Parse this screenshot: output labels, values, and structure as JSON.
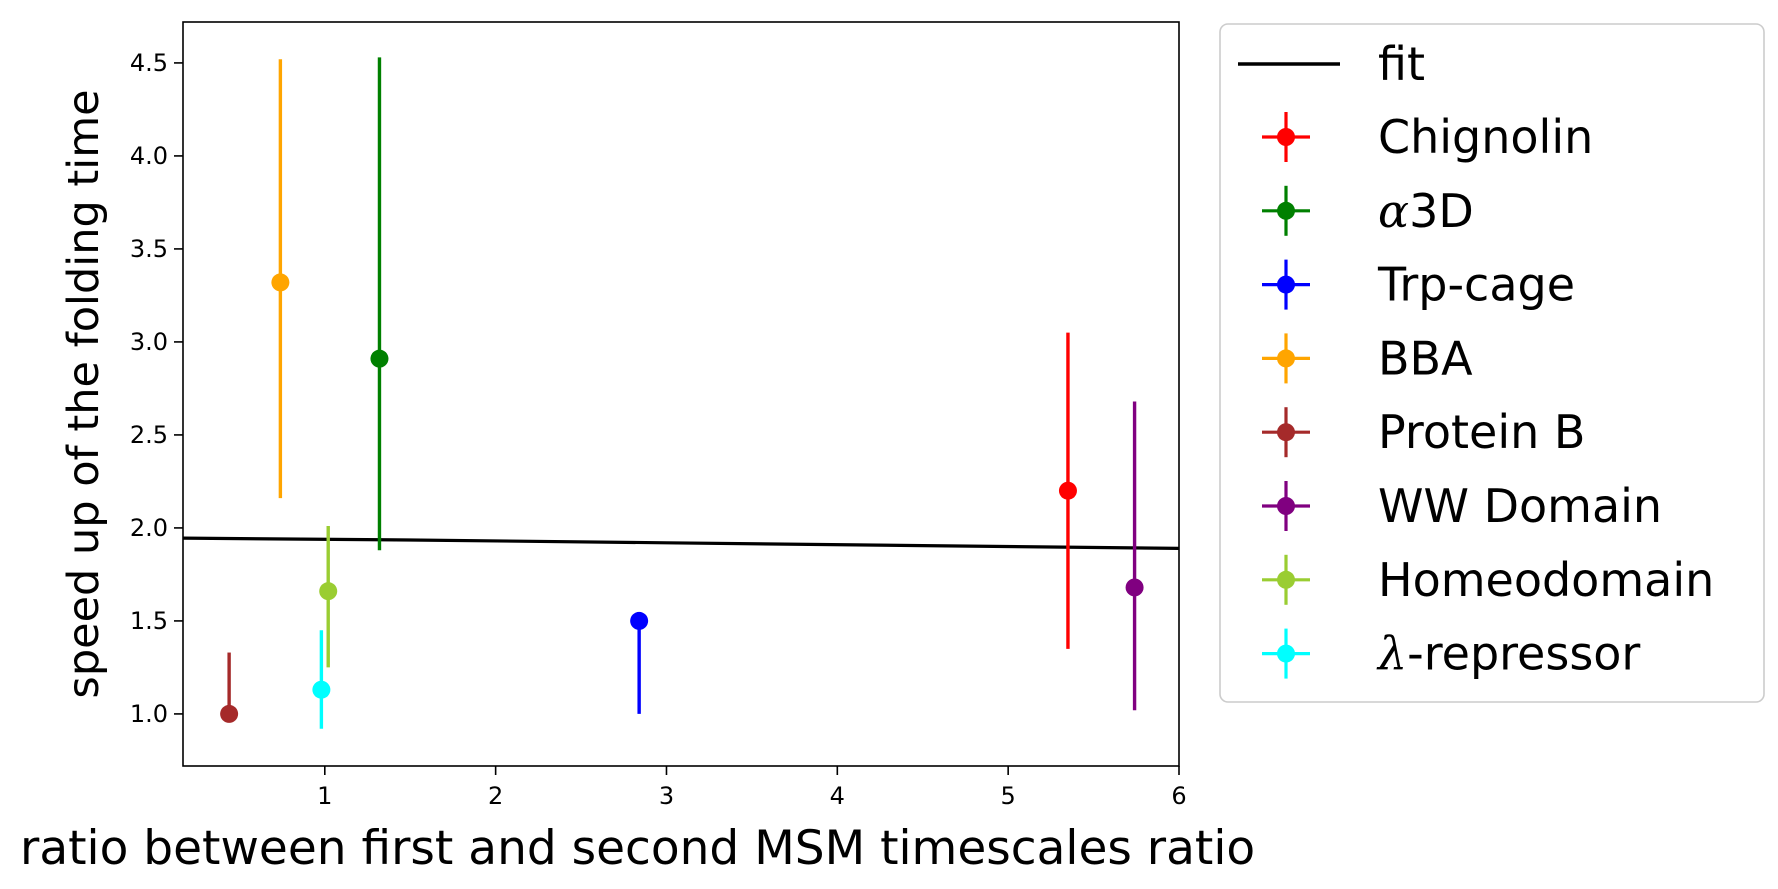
{
  "chart_data": {
    "type": "scatter",
    "title": "",
    "xlabel": "ratio between first and second MSM timescales ratio",
    "ylabel": "speed up of the folding time",
    "xlim": [
      0.17,
      6.0
    ],
    "ylim": [
      0.72,
      4.72
    ],
    "xticks": [
      1,
      2,
      3,
      4,
      5,
      6
    ],
    "yticks": [
      1.0,
      1.5,
      2.0,
      2.5,
      3.0,
      3.5,
      4.0,
      4.5
    ],
    "grid": false,
    "legend_position": "outside-right",
    "fit": {
      "name": "fit",
      "color": "#000000",
      "x": [
        0.17,
        1.5,
        3.0,
        4.5,
        6.0
      ],
      "y": [
        1.945,
        1.935,
        1.92,
        1.905,
        1.89
      ]
    },
    "series": [
      {
        "name": "Chignolin",
        "color": "#ff0000",
        "x": 5.35,
        "y": 2.2,
        "y_low": 1.35,
        "y_high": 3.05
      },
      {
        "name": "α3D",
        "name_prefix": "α",
        "name_suffix": "3D",
        "color": "#008000",
        "x": 1.32,
        "y": 2.91,
        "y_low": 1.88,
        "y_high": 4.53
      },
      {
        "name": "Trp-cage",
        "color": "#0000ff",
        "x": 2.84,
        "y": 1.5,
        "y_low": 1.0,
        "y_high": 1.5
      },
      {
        "name": "BBA",
        "color": "#ffa500",
        "x": 0.74,
        "y": 3.32,
        "y_low": 2.16,
        "y_high": 4.52
      },
      {
        "name": "Protein B",
        "color": "#a52a2a",
        "x": 0.44,
        "y": 1.0,
        "y_low": 1.0,
        "y_high": 1.33
      },
      {
        "name": "WW Domain",
        "color": "#800080",
        "x": 5.74,
        "y": 1.68,
        "y_low": 1.02,
        "y_high": 2.68
      },
      {
        "name": "Homeodomain",
        "color": "#9acd32",
        "x": 1.02,
        "y": 1.66,
        "y_low": 1.25,
        "y_high": 2.01
      },
      {
        "name": "λ-repressor",
        "name_prefix": "λ",
        "name_suffix": "-repressor",
        "color": "#00ffff",
        "x": 0.98,
        "y": 1.13,
        "y_low": 0.92,
        "y_high": 1.45
      }
    ]
  }
}
